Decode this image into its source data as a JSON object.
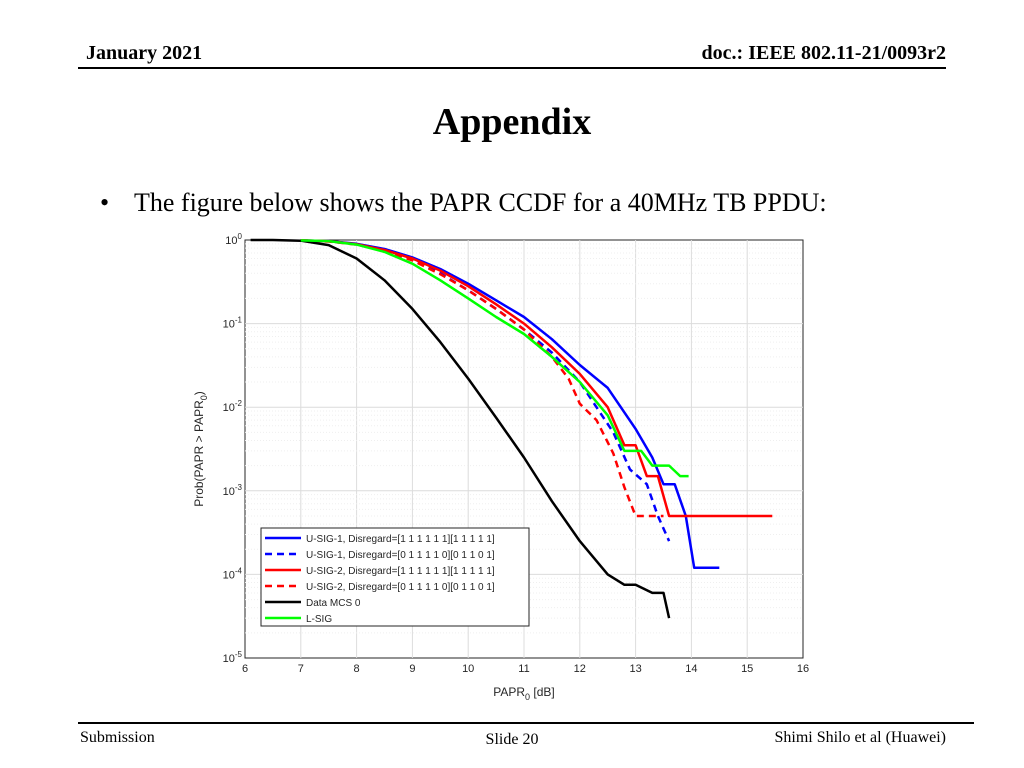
{
  "header": {
    "date": "January 2021",
    "doc_id": "doc.: IEEE 802.11-21/0093r2"
  },
  "title": "Appendix",
  "bullet": "The figure below shows the PAPR CCDF for a 40MHz TB PPDU:",
  "footer": {
    "left": "Submission",
    "center": "Slide 20",
    "right": "Shimi Shilo et al (Huawei)"
  },
  "chart_data": {
    "type": "line",
    "title": "",
    "xlabel": "PAPR₀ [dB]",
    "ylabel": "Prob(PAPR > PAPR₀)",
    "xlim": [
      6,
      16
    ],
    "ylim": [
      1e-05,
      1
    ],
    "yscale": "log",
    "grid": true,
    "legend_position": "lower-left",
    "x_ticks": [
      "6",
      "7",
      "8",
      "9",
      "10",
      "11",
      "12",
      "13",
      "14",
      "15",
      "16"
    ],
    "y_ticks": [
      {
        "base": "10",
        "exp": "0"
      },
      {
        "base": "10",
        "exp": "-1"
      },
      {
        "base": "10",
        "exp": "-2"
      },
      {
        "base": "10",
        "exp": "-3"
      },
      {
        "base": "10",
        "exp": "-4"
      },
      {
        "base": "10",
        "exp": "-5"
      }
    ],
    "series": [
      {
        "name": "U-SIG-1, Disregard=[1 1 1 1 1 1][1 1 1 1 1]",
        "color": "#0000ff",
        "dash": "solid",
        "points": [
          [
            7.0,
            0.99
          ],
          [
            7.5,
            0.97
          ],
          [
            8.0,
            0.9
          ],
          [
            8.5,
            0.78
          ],
          [
            9.0,
            0.62
          ],
          [
            9.5,
            0.45
          ],
          [
            10.0,
            0.3
          ],
          [
            10.5,
            0.19
          ],
          [
            11.0,
            0.12
          ],
          [
            11.5,
            0.065
          ],
          [
            12.0,
            0.032
          ],
          [
            12.5,
            0.017
          ],
          [
            13.0,
            0.0055
          ],
          [
            13.3,
            0.0025
          ],
          [
            13.5,
            0.0012
          ],
          [
            13.7,
            0.0012
          ],
          [
            13.9,
            0.0005
          ],
          [
            14.05,
            0.00012
          ],
          [
            14.5,
            0.00012
          ]
        ]
      },
      {
        "name": "U-SIG-1, Disregard=[0 1 1 1 1 0][0 1 1 0 1]",
        "color": "#0000ff",
        "dash": "dashed",
        "points": [
          [
            7.0,
            0.99
          ],
          [
            7.5,
            0.97
          ],
          [
            8.0,
            0.89
          ],
          [
            8.5,
            0.75
          ],
          [
            9.0,
            0.58
          ],
          [
            9.5,
            0.4
          ],
          [
            10.0,
            0.25
          ],
          [
            10.5,
            0.15
          ],
          [
            11.0,
            0.085
          ],
          [
            11.5,
            0.045
          ],
          [
            12.0,
            0.02
          ],
          [
            12.3,
            0.01
          ],
          [
            12.6,
            0.005
          ],
          [
            12.9,
            0.0018
          ],
          [
            13.2,
            0.0012
          ],
          [
            13.4,
            0.0005
          ],
          [
            13.6,
            0.00025
          ]
        ]
      },
      {
        "name": "U-SIG-2, Disregard=[1 1 1 1 1 1][1 1 1 1 1]",
        "color": "#ff0000",
        "dash": "solid",
        "points": [
          [
            7.0,
            0.99
          ],
          [
            7.5,
            0.97
          ],
          [
            8.0,
            0.89
          ],
          [
            8.5,
            0.76
          ],
          [
            9.0,
            0.6
          ],
          [
            9.5,
            0.43
          ],
          [
            10.0,
            0.28
          ],
          [
            10.5,
            0.17
          ],
          [
            11.0,
            0.1
          ],
          [
            11.5,
            0.052
          ],
          [
            12.0,
            0.025
          ],
          [
            12.5,
            0.01
          ],
          [
            12.8,
            0.0035
          ],
          [
            13.0,
            0.0035
          ],
          [
            13.2,
            0.0015
          ],
          [
            13.4,
            0.0015
          ],
          [
            13.6,
            0.0005
          ],
          [
            14.5,
            0.0005
          ],
          [
            15.45,
            0.0005
          ]
        ]
      },
      {
        "name": "U-SIG-2, Disregard=[0 1 1 1 1 0][0 1 1 0 1]",
        "color": "#ff0000",
        "dash": "dashed",
        "points": [
          [
            7.0,
            0.99
          ],
          [
            7.5,
            0.96
          ],
          [
            8.0,
            0.88
          ],
          [
            8.5,
            0.74
          ],
          [
            9.0,
            0.57
          ],
          [
            9.5,
            0.39
          ],
          [
            10.0,
            0.25
          ],
          [
            10.5,
            0.15
          ],
          [
            11.0,
            0.085
          ],
          [
            11.5,
            0.04
          ],
          [
            11.8,
            0.022
          ],
          [
            12.0,
            0.011
          ],
          [
            12.3,
            0.007
          ],
          [
            12.6,
            0.0028
          ],
          [
            12.8,
            0.0011
          ],
          [
            13.0,
            0.0005
          ],
          [
            13.5,
            0.0005
          ]
        ]
      },
      {
        "name": "Data MCS 0",
        "color": "#000000",
        "dash": "solid",
        "points": [
          [
            6.1,
            1.0
          ],
          [
            6.5,
            1.0
          ],
          [
            7.0,
            0.98
          ],
          [
            7.5,
            0.87
          ],
          [
            8.0,
            0.6
          ],
          [
            8.5,
            0.33
          ],
          [
            9.0,
            0.15
          ],
          [
            9.5,
            0.06
          ],
          [
            10.0,
            0.022
          ],
          [
            10.5,
            0.0075
          ],
          [
            11.0,
            0.0025
          ],
          [
            11.5,
            0.00075
          ],
          [
            12.0,
            0.00025
          ],
          [
            12.5,
            0.0001
          ],
          [
            12.8,
            7.5e-05
          ],
          [
            13.0,
            7.5e-05
          ],
          [
            13.3,
            6e-05
          ],
          [
            13.5,
            6e-05
          ],
          [
            13.6,
            3e-05
          ]
        ]
      },
      {
        "name": "L-SIG",
        "color": "#00ff00",
        "dash": "solid",
        "points": [
          [
            7.0,
            0.99
          ],
          [
            7.5,
            0.97
          ],
          [
            8.0,
            0.88
          ],
          [
            8.5,
            0.72
          ],
          [
            9.0,
            0.52
          ],
          [
            9.5,
            0.33
          ],
          [
            10.0,
            0.2
          ],
          [
            10.5,
            0.12
          ],
          [
            11.0,
            0.075
          ],
          [
            11.5,
            0.04
          ],
          [
            12.0,
            0.02
          ],
          [
            12.5,
            0.008
          ],
          [
            12.8,
            0.003
          ],
          [
            13.1,
            0.003
          ],
          [
            13.3,
            0.002
          ],
          [
            13.6,
            0.002
          ],
          [
            13.8,
            0.0015
          ],
          [
            13.95,
            0.0015
          ]
        ]
      }
    ]
  }
}
